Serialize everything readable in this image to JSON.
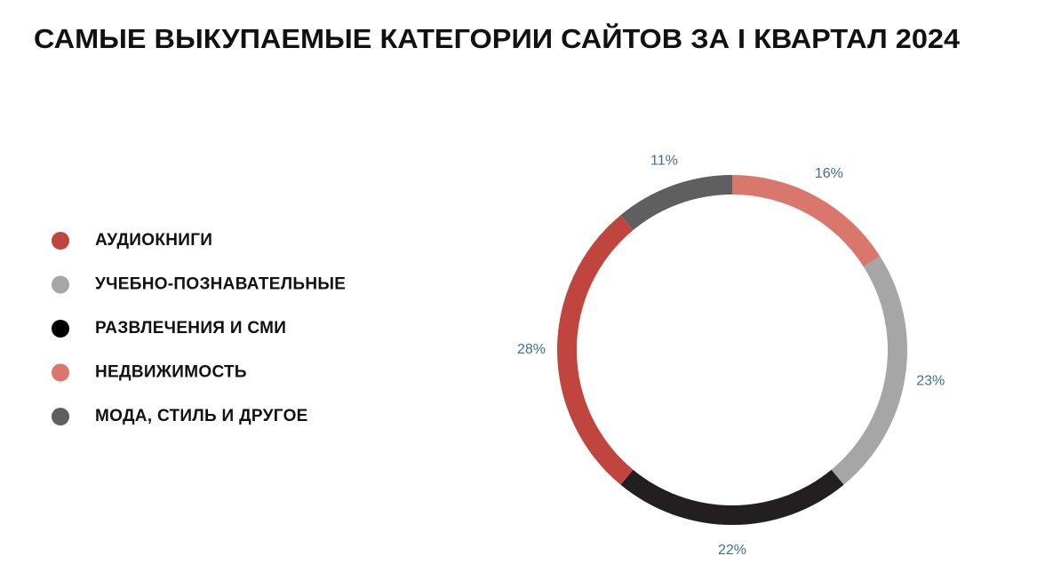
{
  "chart_data": {
    "type": "donut",
    "title": "САМЫЕ ВЫКУПАЕМЫЕ КАТЕГОРИИ САЙТОВ ЗА I КВАРТАЛ 2024",
    "values": [
      16,
      23,
      22,
      28,
      11
    ],
    "value_labels": [
      "16%",
      "23%",
      "22%",
      "28%",
      "11%"
    ],
    "colors": [
      "#d9776c",
      "#a6a6a6",
      "#231f20",
      "#c0453f",
      "#5f5f5f"
    ],
    "legend": [
      {
        "name": "АУДИОКНИГИ",
        "color": "#c0453f"
      },
      {
        "name": "УЧЕБНО-ПОЗНАВАТЕЛЬНЫЕ",
        "color": "#a6a6a6"
      },
      {
        "name": "РАЗВЛЕЧЕНИЯ И СМИ",
        "color": "#000000"
      },
      {
        "name": "НЕДВИЖИМОСТЬ",
        "color": "#d9776c"
      },
      {
        "name": "МОДА, СТИЛЬ И ДРУГОЕ",
        "color": "#5f5f5f"
      }
    ]
  }
}
